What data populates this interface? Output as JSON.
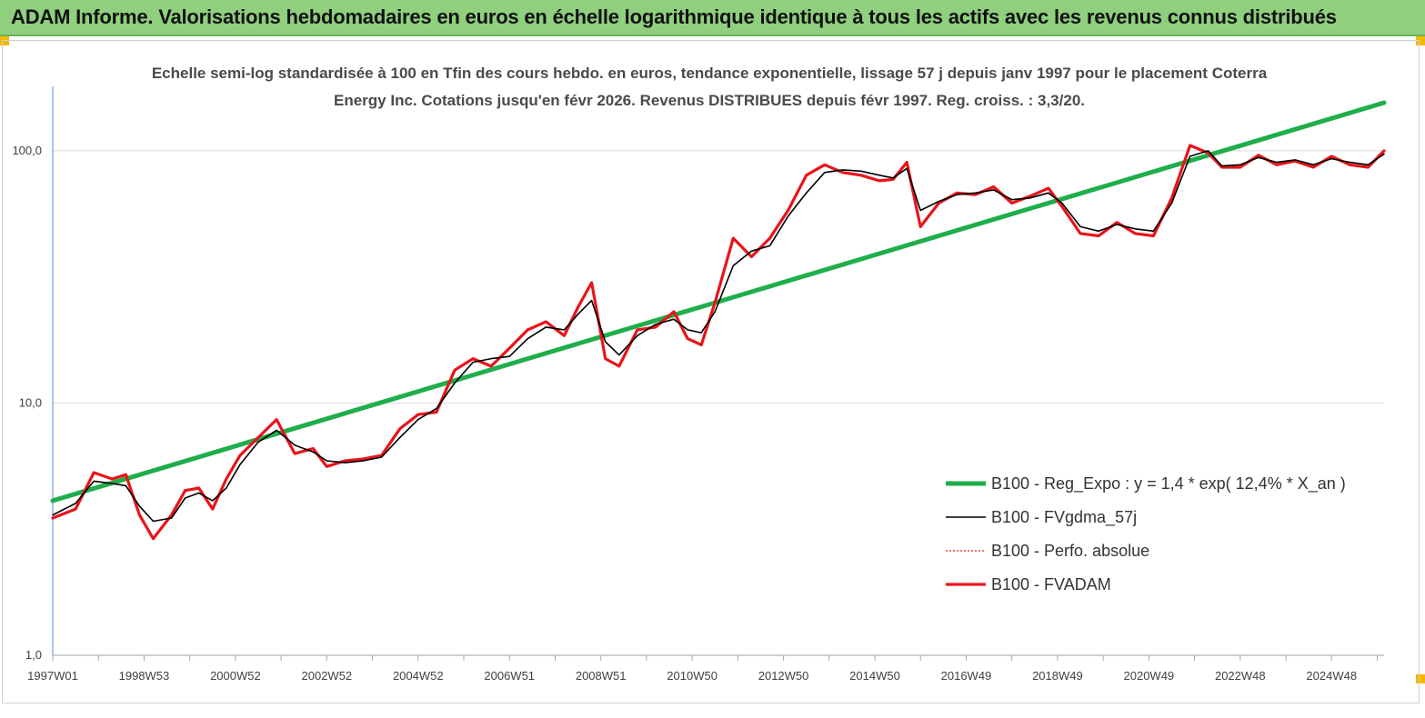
{
  "banner": {
    "title": "ADAM Informe. Valorisations hebdomadaires en euros en échelle logarithmique identique à tous les actifs avec les revenus connus distribués"
  },
  "chart_data": {
    "type": "line",
    "title": "Echelle semi-log standardisée à 100 en Tfin des cours hebdo. en euros, tendance exponentielle, lissage 57 j depuis janv 1997 pour le placement Coterra Energy Inc. Cotations jusqu'en févr 2026. Revenus DISTRIBUES depuis févr 1997. Reg. croiss. : 3,3/20.",
    "xlabel": "",
    "ylabel": "",
    "y_scale": "log",
    "ylim": [
      1,
      180
    ],
    "xlim": [
      1997.0,
      2026.15
    ],
    "grid": "horizontal",
    "legend_position": "bottom-right",
    "y_ticks": [
      {
        "value": 1,
        "label": "1,0"
      },
      {
        "value": 10,
        "label": "10,0"
      },
      {
        "value": 100,
        "label": "100,0"
      }
    ],
    "x_ticks": [
      {
        "value": 1997.0,
        "label": "1997W01"
      },
      {
        "value": 1999.0,
        "label": "1998W53"
      },
      {
        "value": 2001.0,
        "label": "2000W52"
      },
      {
        "value": 2003.0,
        "label": "2002W52"
      },
      {
        "value": 2005.0,
        "label": "2004W52"
      },
      {
        "value": 2007.0,
        "label": "2006W51"
      },
      {
        "value": 2009.0,
        "label": "2008W51"
      },
      {
        "value": 2011.0,
        "label": "2010W50"
      },
      {
        "value": 2013.0,
        "label": "2012W50"
      },
      {
        "value": 2015.0,
        "label": "2014W50"
      },
      {
        "value": 2017.0,
        "label": "2016W49"
      },
      {
        "value": 2019.0,
        "label": "2018W49"
      },
      {
        "value": 2021.0,
        "label": "2020W49"
      },
      {
        "value": 2023.0,
        "label": "2022W48"
      },
      {
        "value": 2025.0,
        "label": "2024W48"
      }
    ],
    "series": [
      {
        "name": "B100 - Reg_Expo : y = 1,4 * exp( 12,4% *  X_an )",
        "color": "#1fae4b",
        "style": "thick",
        "x": [
          1997.0,
          2026.15
        ],
        "y": [
          4.1,
          155
        ]
      },
      {
        "name": "B100 - FVgdma_57j",
        "color": "#000000",
        "style": "thin",
        "x": [
          1997.0,
          1997.5,
          1997.9,
          1998.3,
          1998.6,
          1998.9,
          1999.2,
          1999.6,
          1999.9,
          2000.2,
          2000.5,
          2000.8,
          2001.1,
          2001.5,
          2001.9,
          2002.3,
          2002.7,
          2003.0,
          2003.4,
          2003.8,
          2004.2,
          2004.6,
          2005.0,
          2005.4,
          2005.8,
          2006.2,
          2006.6,
          2007.0,
          2007.4,
          2007.8,
          2008.2,
          2008.5,
          2008.8,
          2009.1,
          2009.4,
          2009.8,
          2010.2,
          2010.6,
          2010.9,
          2011.2,
          2011.5,
          2011.9,
          2012.3,
          2012.7,
          2013.1,
          2013.5,
          2013.9,
          2014.3,
          2014.7,
          2015.1,
          2015.4,
          2015.7,
          2016.0,
          2016.4,
          2016.8,
          2017.2,
          2017.6,
          2018.0,
          2018.4,
          2018.8,
          2019.1,
          2019.5,
          2019.9,
          2020.3,
          2020.7,
          2021.1,
          2021.5,
          2021.9,
          2022.3,
          2022.6,
          2023.0,
          2023.4,
          2023.8,
          2024.2,
          2024.6,
          2025.0,
          2025.4,
          2025.8,
          2026.15
        ],
        "y": [
          3.6,
          4.0,
          4.9,
          4.8,
          4.7,
          3.9,
          3.4,
          3.5,
          4.2,
          4.4,
          4.1,
          4.6,
          5.7,
          7.0,
          7.8,
          6.8,
          6.4,
          5.9,
          5.8,
          5.9,
          6.1,
          7.3,
          8.6,
          9.5,
          12.0,
          14.5,
          15.0,
          15.3,
          18.0,
          20.0,
          19.5,
          22.5,
          25.5,
          17.5,
          15.5,
          18.5,
          20.5,
          21.5,
          19.5,
          19.0,
          23.0,
          35.0,
          40.0,
          42.0,
          55.0,
          68.0,
          82.0,
          84.0,
          83.0,
          80.0,
          78.0,
          85.0,
          58.0,
          63.0,
          67.0,
          68.0,
          70.0,
          64.0,
          65.0,
          68.0,
          62.0,
          50.0,
          48.0,
          51.0,
          49.0,
          48.0,
          62.0,
          95.0,
          100.0,
          87.0,
          88.0,
          94.0,
          90.0,
          92.0,
          88.0,
          93.0,
          90.0,
          88.0,
          97.0
        ]
      },
      {
        "name": "B100 - Perfo. absolue",
        "color": "#e8141b",
        "style": "dotted",
        "x": [
          1997.0,
          1997.5,
          1997.9,
          1998.3,
          1998.6,
          1998.9,
          1999.2,
          1999.6,
          1999.9,
          2000.2,
          2000.5,
          2000.8,
          2001.1,
          2001.5,
          2001.9,
          2002.3,
          2002.7,
          2003.0,
          2003.4,
          2003.8,
          2004.2,
          2004.6,
          2005.0,
          2005.4,
          2005.8,
          2006.2,
          2006.6,
          2007.0,
          2007.4,
          2007.8,
          2008.2,
          2008.5,
          2008.8,
          2009.1,
          2009.4,
          2009.8,
          2010.2,
          2010.6,
          2010.9,
          2011.2,
          2011.5,
          2011.9,
          2012.3,
          2012.7,
          2013.1,
          2013.5,
          2013.9,
          2014.3,
          2014.7,
          2015.1,
          2015.4,
          2015.7,
          2016.0,
          2016.4,
          2016.8,
          2017.2,
          2017.6,
          2018.0,
          2018.4,
          2018.8,
          2019.1,
          2019.5,
          2019.9,
          2020.3,
          2020.7,
          2021.1,
          2021.5,
          2021.9,
          2022.3,
          2022.6,
          2023.0,
          2023.4,
          2023.8,
          2024.2,
          2024.6,
          2025.0,
          2025.4,
          2025.8,
          2026.15
        ],
        "y": [
          3.5,
          3.8,
          5.3,
          5.0,
          5.2,
          3.6,
          2.9,
          3.6,
          4.5,
          4.6,
          3.8,
          5.0,
          6.2,
          7.3,
          8.6,
          6.3,
          6.6,
          5.6,
          5.9,
          6.0,
          6.2,
          7.9,
          9.0,
          9.2,
          13.5,
          15.0,
          14.0,
          16.5,
          19.5,
          21.0,
          18.5,
          24.0,
          30.0,
          15.0,
          14.0,
          19.5,
          20.0,
          23.0,
          18.0,
          17.0,
          25.0,
          45.0,
          38.0,
          45.0,
          58.0,
          80.0,
          88.0,
          82.0,
          80.0,
          76.0,
          77.0,
          90.0,
          50.0,
          62.0,
          68.0,
          67.0,
          72.0,
          62.0,
          66.0,
          71.0,
          60.0,
          47.0,
          46.0,
          52.0,
          47.0,
          46.0,
          65.0,
          105.0,
          98.0,
          86.0,
          86.0,
          96.0,
          88.0,
          91.0,
          86.0,
          95.0,
          88.0,
          86.0,
          100.0
        ]
      },
      {
        "name": "B100 - FVADAM",
        "color": "#e8141b",
        "style": "thick",
        "x": [
          1997.0,
          1997.5,
          1997.9,
          1998.3,
          1998.6,
          1998.9,
          1999.2,
          1999.6,
          1999.9,
          2000.2,
          2000.5,
          2000.8,
          2001.1,
          2001.5,
          2001.9,
          2002.3,
          2002.7,
          2003.0,
          2003.4,
          2003.8,
          2004.2,
          2004.6,
          2005.0,
          2005.4,
          2005.8,
          2006.2,
          2006.6,
          2007.0,
          2007.4,
          2007.8,
          2008.2,
          2008.5,
          2008.8,
          2009.1,
          2009.4,
          2009.8,
          2010.2,
          2010.6,
          2010.9,
          2011.2,
          2011.5,
          2011.9,
          2012.3,
          2012.7,
          2013.1,
          2013.5,
          2013.9,
          2014.3,
          2014.7,
          2015.1,
          2015.4,
          2015.7,
          2016.0,
          2016.4,
          2016.8,
          2017.2,
          2017.6,
          2018.0,
          2018.4,
          2018.8,
          2019.1,
          2019.5,
          2019.9,
          2020.3,
          2020.7,
          2021.1,
          2021.5,
          2021.9,
          2022.3,
          2022.6,
          2023.0,
          2023.4,
          2023.8,
          2024.2,
          2024.6,
          2025.0,
          2025.4,
          2025.8,
          2026.15
        ],
        "y": [
          3.5,
          3.8,
          5.3,
          5.0,
          5.2,
          3.6,
          2.9,
          3.6,
          4.5,
          4.6,
          3.8,
          5.0,
          6.2,
          7.3,
          8.6,
          6.3,
          6.6,
          5.6,
          5.9,
          6.0,
          6.2,
          7.9,
          9.0,
          9.2,
          13.5,
          15.0,
          14.0,
          16.5,
          19.5,
          21.0,
          18.5,
          24.0,
          30.0,
          15.0,
          14.0,
          19.5,
          20.0,
          23.0,
          18.0,
          17.0,
          25.0,
          45.0,
          38.0,
          45.0,
          58.0,
          80.0,
          88.0,
          82.0,
          80.0,
          76.0,
          77.0,
          90.0,
          50.0,
          62.0,
          68.0,
          67.0,
          72.0,
          62.0,
          66.0,
          71.0,
          60.0,
          47.0,
          46.0,
          52.0,
          47.0,
          46.0,
          65.0,
          105.0,
          98.0,
          86.0,
          86.0,
          96.0,
          88.0,
          91.0,
          86.0,
          95.0,
          88.0,
          86.0,
          100.0
        ]
      }
    ]
  }
}
